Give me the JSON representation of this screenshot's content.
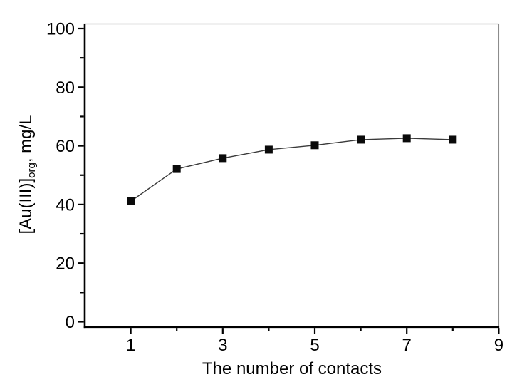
{
  "chart_data": {
    "type": "line",
    "x": [
      1,
      2,
      3,
      4,
      5,
      6,
      7,
      8
    ],
    "y": [
      41.1,
      52.1,
      55.8,
      58.7,
      60.2,
      62.1,
      62.6,
      62.1
    ],
    "xlabel": "The number of contacts",
    "ylabel": {
      "main": "[Au(III)]",
      "sub": "org",
      "unit": ", mg/L"
    },
    "xlim": [
      0,
      9
    ],
    "ylim": [
      0,
      100
    ],
    "x_major_ticks": [
      1,
      3,
      5,
      7,
      9
    ],
    "x_minor_ticks": [
      2,
      4,
      6,
      8
    ],
    "y_major_ticks": [
      0,
      20,
      40,
      60,
      80,
      100
    ],
    "y_minor_ticks": [
      10,
      30,
      50,
      70,
      90
    ],
    "grid": false,
    "legend": "none",
    "marker": "filled-square",
    "style": {
      "line_color": "#3a3a3a",
      "marker_color": "#0a0a0a",
      "axis_color": "#000000",
      "frame_color": "#8c8c8c",
      "text_color": "#000000",
      "background": "#ffffff"
    }
  }
}
